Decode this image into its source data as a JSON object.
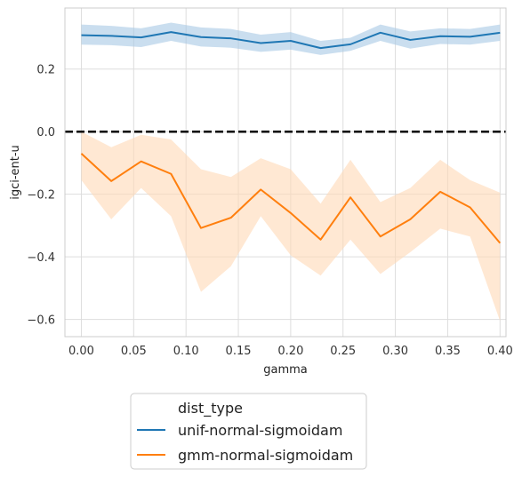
{
  "chart_data": {
    "type": "line",
    "xlabel": "gamma",
    "ylabel": "igci-ent-u",
    "xlim": [
      -0.0157,
      0.4057
    ],
    "ylim": [
      -0.655,
      0.395
    ],
    "xticks": [
      0.0,
      0.05,
      0.1,
      0.15,
      0.2,
      0.25,
      0.3,
      0.35,
      0.4
    ],
    "xtick_labels": [
      "0.00",
      "0.05",
      "0.10",
      "0.15",
      "0.20",
      "0.25",
      "0.30",
      "0.35",
      "0.40"
    ],
    "yticks": [
      0.2,
      0.0,
      -0.2,
      -0.4,
      -0.6
    ],
    "ytick_labels": [
      "0.2",
      "0.0",
      "−0.2",
      "−0.4",
      "−0.6"
    ],
    "grid": true,
    "reference_line": {
      "y": 0.0,
      "style": "dashed",
      "color": "#000000"
    },
    "x": [
      0.0,
      0.0286,
      0.0571,
      0.0857,
      0.1143,
      0.1429,
      0.1714,
      0.2,
      0.2286,
      0.2571,
      0.2857,
      0.3143,
      0.3429,
      0.3714,
      0.4
    ],
    "series": [
      {
        "name": "unif-normal-sigmoidam",
        "color": "#1f77b4",
        "band_color": "#a6c8e4",
        "values": [
          0.308,
          0.306,
          0.301,
          0.318,
          0.302,
          0.298,
          0.283,
          0.29,
          0.267,
          0.279,
          0.316,
          0.293,
          0.305,
          0.303,
          0.316
        ],
        "ci_upper": [
          0.342,
          0.338,
          0.33,
          0.348,
          0.333,
          0.328,
          0.31,
          0.318,
          0.29,
          0.3,
          0.342,
          0.32,
          0.33,
          0.328,
          0.342
        ],
        "ci_lower": [
          0.278,
          0.276,
          0.27,
          0.29,
          0.272,
          0.268,
          0.255,
          0.262,
          0.245,
          0.258,
          0.29,
          0.265,
          0.28,
          0.278,
          0.29
        ]
      },
      {
        "name": "gmm-normal-sigmoidam",
        "color": "#ff7f0e",
        "band_color": "#ffd8b5",
        "values": [
          -0.07,
          -0.158,
          -0.095,
          -0.135,
          -0.308,
          -0.275,
          -0.185,
          -0.26,
          -0.345,
          -0.21,
          -0.335,
          -0.28,
          -0.192,
          -0.242,
          -0.356
        ],
        "ci_upper": [
          0.0,
          -0.05,
          -0.01,
          -0.025,
          -0.12,
          -0.145,
          -0.085,
          -0.12,
          -0.23,
          -0.09,
          -0.225,
          -0.18,
          -0.09,
          -0.155,
          -0.195
        ],
        "ci_lower": [
          -0.155,
          -0.28,
          -0.18,
          -0.27,
          -0.512,
          -0.43,
          -0.27,
          -0.395,
          -0.46,
          -0.345,
          -0.455,
          -0.385,
          -0.31,
          -0.335,
          -0.605
        ]
      }
    ],
    "legend": {
      "title": "dist_type",
      "placement": "below plot, left of center",
      "entries": [
        "unif-normal-sigmoidam",
        "gmm-normal-sigmoidam"
      ]
    }
  }
}
